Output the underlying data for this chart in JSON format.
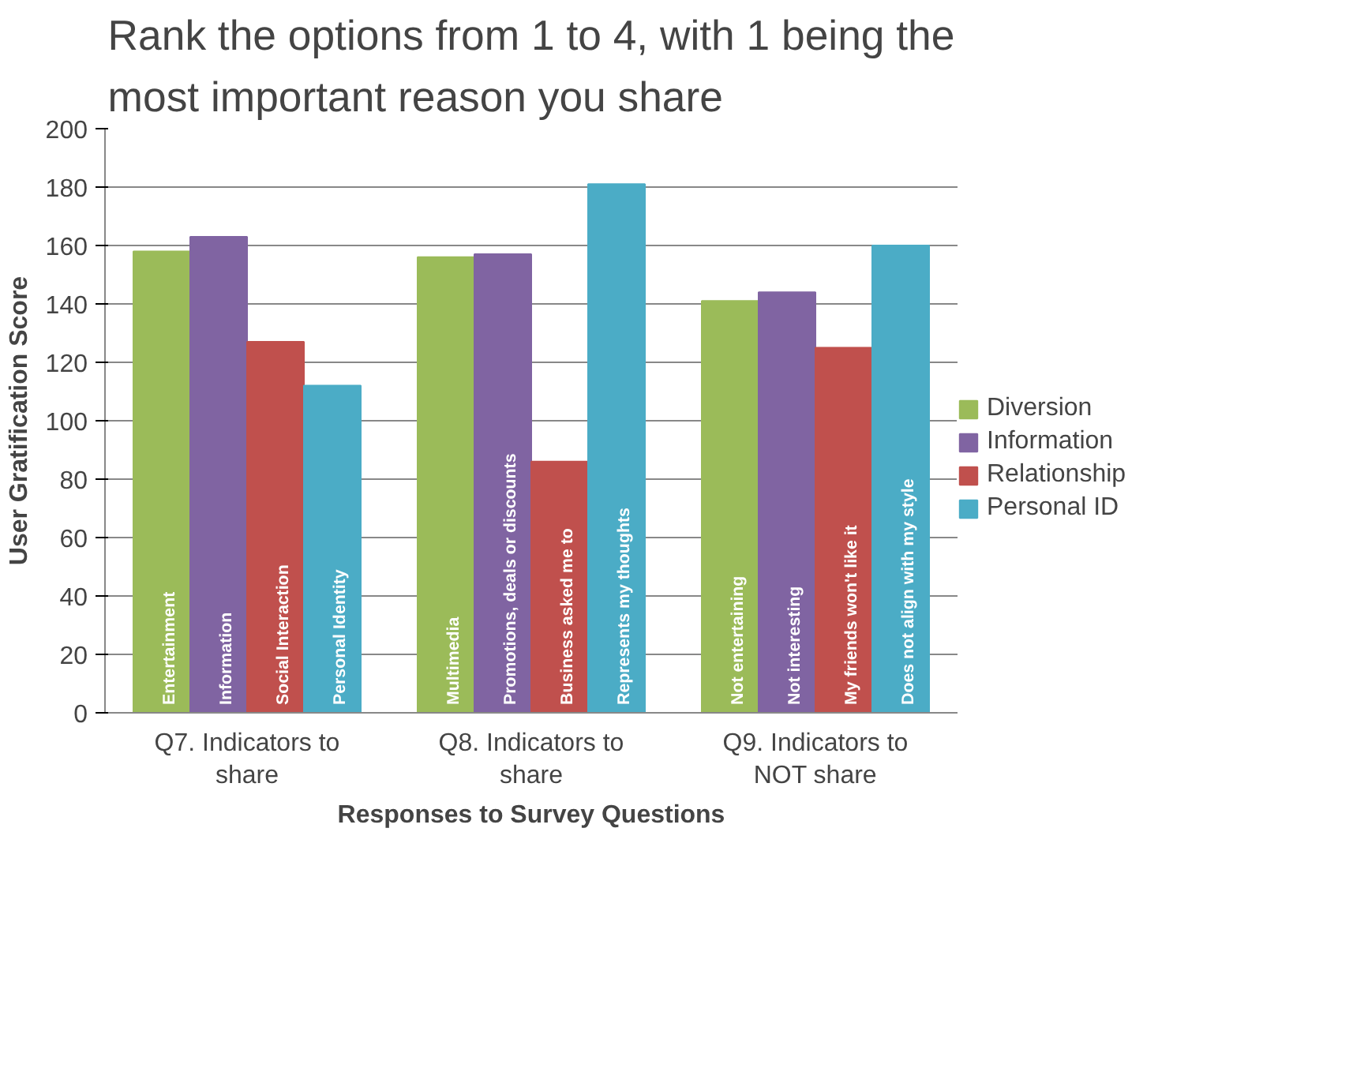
{
  "chart_data": {
    "type": "bar",
    "title": "Rank the options from 1 to 4, with 1 being the most important reason you share",
    "xlabel": "Responses to Survey Questions",
    "ylabel": "User Gratification Score",
    "categories": [
      "Q7. Indicators to share",
      "Q8. Indicators to share",
      "Q9. Indicators to NOT share"
    ],
    "series": [
      {
        "name": "Diversion",
        "color": "#9bbb59",
        "values": [
          158,
          156,
          141
        ],
        "value_labels": [
          "Entertainment",
          "Multimedia",
          "Not entertaining"
        ]
      },
      {
        "name": "Information",
        "color": "#8064a2",
        "values": [
          163,
          157,
          144
        ],
        "value_labels": [
          "Information",
          "Promotions, deals or discounts",
          "Not interesting"
        ]
      },
      {
        "name": "Relationship",
        "color": "#c0504d",
        "values": [
          127,
          86,
          125
        ],
        "value_labels": [
          "Social Interaction",
          "Business  asked me to",
          "My friends won't like it"
        ]
      },
      {
        "name": "Personal ID",
        "color": "#4bacc6",
        "values": [
          112,
          181,
          160
        ],
        "value_labels": [
          "Personal Identity",
          "Represents  my thoughts",
          "Does not align with my style"
        ]
      }
    ],
    "ylim": [
      0,
      200
    ],
    "yticks": [
      0,
      20,
      40,
      60,
      80,
      100,
      120,
      140,
      160,
      180,
      200
    ],
    "grid": "y",
    "legend": "right"
  }
}
